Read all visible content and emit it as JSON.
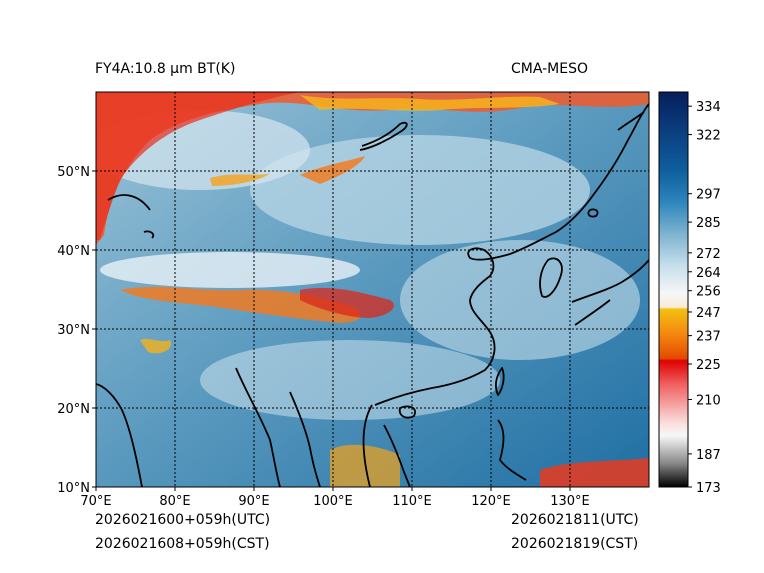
{
  "header": {
    "title_left": "FY4A:10.8 µm BT(K)",
    "title_right": "CMA-MESO"
  },
  "footer": {
    "init_utc": "2026021600+059h(UTC)",
    "init_cst": "2026021608+059h(CST)",
    "valid_utc": "2026021811(UTC)",
    "valid_cst": "2026021819(CST)"
  },
  "map": {
    "lon_range": [
      70,
      140
    ],
    "lat_range": [
      10,
      60
    ],
    "lon_ticks": [
      70,
      80,
      90,
      100,
      110,
      120,
      130
    ],
    "lon_tick_labels": [
      "70°E",
      "80°E",
      "90°E",
      "100°E",
      "110°E",
      "120°E",
      "130°E"
    ],
    "lat_ticks": [
      20,
      30,
      40,
      50
    ],
    "lat_ticks_labeled": [
      10,
      20,
      30,
      40,
      50
    ],
    "lat_tick_labels": [
      "10°N",
      "20°N",
      "30°N",
      "40°N",
      "50°N"
    ]
  },
  "colorbar": {
    "range": [
      173,
      340
    ],
    "tick_values": [
      173,
      187,
      210,
      225,
      237,
      247,
      256,
      264,
      272,
      285,
      297,
      322,
      334
    ],
    "tick_labels": [
      "173",
      "187",
      "210",
      "225",
      "237",
      "247",
      "256",
      "264",
      "272",
      "285",
      "297",
      "322",
      "334"
    ]
  }
}
